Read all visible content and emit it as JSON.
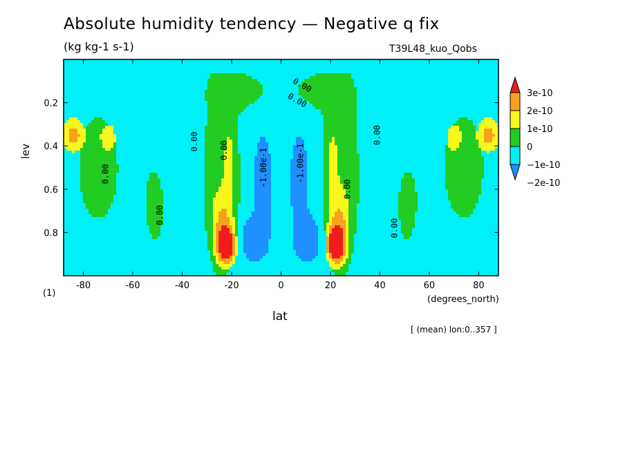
{
  "title": "Absolute humidity tendency — Negative q fix",
  "subtitle": "(kg kg-1 s-1)",
  "run_label": "T39L48_kuo_Qobs",
  "footnote": "[ (mean) lon:0..357 ]",
  "chart_data": {
    "type": "heatmap",
    "title": "Absolute humidity tendency — Negative q fix",
    "units": "(kg kg-1 s-1)",
    "xlabel": "lat",
    "x_units": "(degrees_north)",
    "ylabel": "lev",
    "y_units": "(1)",
    "xlim": [
      -88,
      88
    ],
    "ylim": [
      1.0,
      0.0
    ],
    "x_ticks": [
      -80,
      -60,
      -40,
      -20,
      0,
      20,
      40,
      60,
      80
    ],
    "y_ticks": [
      0.2,
      0.4,
      0.6,
      0.8
    ],
    "contour_levels": [
      -2e-10,
      -1e-10,
      0,
      1e-10,
      2e-10,
      3e-10
    ],
    "colorbar": {
      "labels": [
        "3e-10",
        "2e-10",
        "1e-10",
        "0",
        "−1e-10",
        "−2e-10"
      ],
      "colors": [
        "#ee1c1c",
        "#f7a21c",
        "#f7f71c",
        "#22cc22",
        "#00f0f8",
        "#1e90ff"
      ]
    },
    "contour_labels": [
      "0.00",
      "0.00",
      "0.00",
      "0.00",
      "0.00",
      "0.00",
      "0.00",
      "0.00",
      "0.00",
      "-1.00e-1",
      "-1.00e-1"
    ],
    "features": [
      {
        "name": "positive maximum SH",
        "lat": -22,
        "lev": 0.84,
        "value": 3e-10
      },
      {
        "name": "positive maximum NH",
        "lat": 22,
        "lev": 0.84,
        "value": 3e-10
      },
      {
        "name": "negative band SH",
        "lat": -8,
        "lev_range": [
          0.28,
          0.9
        ],
        "value": -2e-10
      },
      {
        "name": "negative band NH",
        "lat": 8,
        "lev_range": [
          0.28,
          0.9
        ],
        "value": -2e-10
      },
      {
        "name": "positive high-latitude SH",
        "lat": -84,
        "lev_range": [
          0.28,
          0.42
        ],
        "value": 2e-10
      },
      {
        "name": "positive high-latitude NH",
        "lat": 84,
        "lev_range": [
          0.28,
          0.42
        ],
        "value": 2e-10
      }
    ]
  }
}
